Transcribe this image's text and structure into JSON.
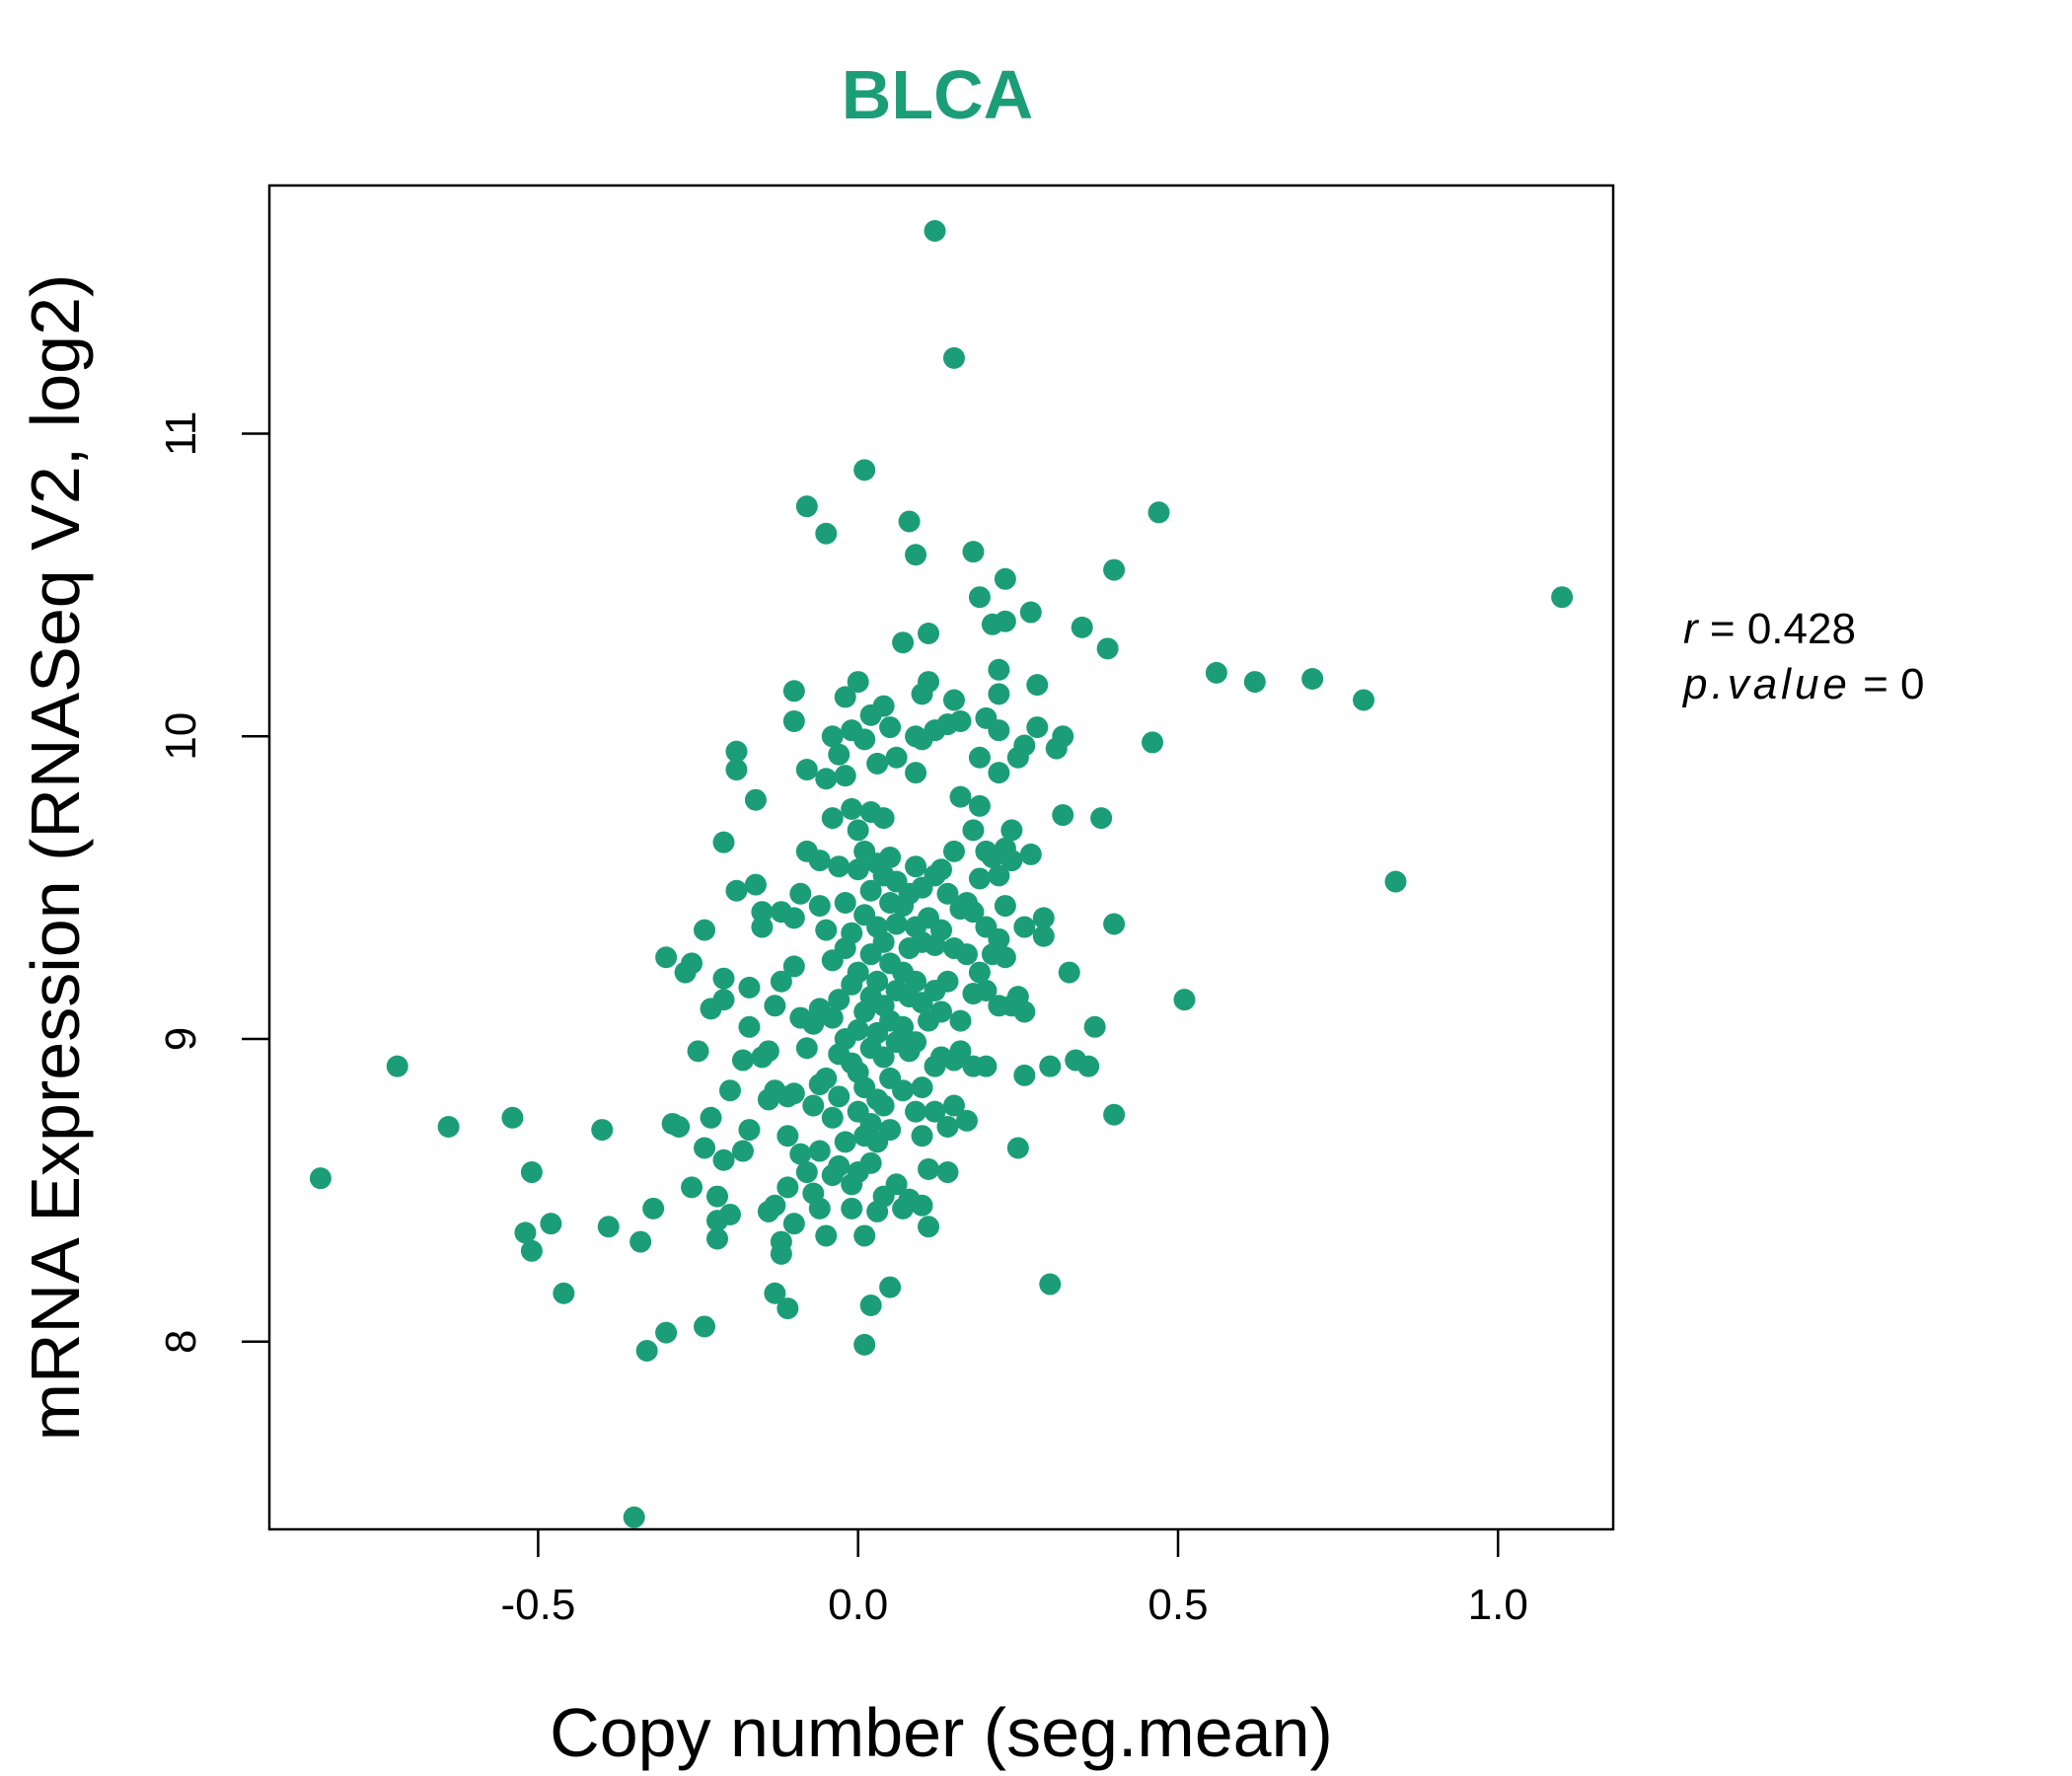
{
  "chart_data": {
    "type": "scatter",
    "title": "BLCA",
    "xlabel": "Copy number (seg.mean)",
    "ylabel": "mRNA Expression (RNASeq V2, log2)",
    "xlim": [
      -0.92,
      1.18
    ],
    "ylim": [
      7.38,
      11.82
    ],
    "x_ticks": [
      {
        "v": -0.5,
        "label": "-0.5"
      },
      {
        "v": 0.0,
        "label": "0.0"
      },
      {
        "v": 0.5,
        "label": "0.5"
      },
      {
        "v": 1.0,
        "label": "1.0"
      }
    ],
    "y_ticks": [
      {
        "v": 8,
        "label": "8"
      },
      {
        "v": 9,
        "label": "9"
      },
      {
        "v": 10,
        "label": "10"
      },
      {
        "v": 11,
        "label": "11"
      }
    ],
    "grid": false,
    "legend": "none",
    "annotation": {
      "r_symbol": "r",
      "r_value": "0.428",
      "p_symbol": "p.value",
      "p_value": "0"
    },
    "colors": {
      "point": "#1B9E77",
      "title": "#1B9E77",
      "axis": "#000000"
    },
    "points": [
      [
        -0.84,
        8.54
      ],
      [
        -0.72,
        8.91
      ],
      [
        -0.64,
        8.71
      ],
      [
        -0.54,
        8.74
      ],
      [
        -0.52,
        8.36
      ],
      [
        -0.51,
        8.56
      ],
      [
        -0.51,
        8.3
      ],
      [
        -0.48,
        8.39
      ],
      [
        -0.46,
        8.16
      ],
      [
        -0.4,
        8.7
      ],
      [
        -0.39,
        8.38
      ],
      [
        -0.35,
        7.42
      ],
      [
        -0.34,
        8.33
      ],
      [
        -0.33,
        7.97
      ],
      [
        -0.32,
        8.44
      ],
      [
        -0.3,
        8.03
      ],
      [
        -0.3,
        9.27
      ],
      [
        -0.29,
        8.72
      ],
      [
        -0.28,
        8.71
      ],
      [
        -0.27,
        9.22
      ],
      [
        -0.26,
        9.25
      ],
      [
        -0.26,
        8.51
      ],
      [
        -0.25,
        8.96
      ],
      [
        -0.24,
        8.05
      ],
      [
        -0.24,
        9.36
      ],
      [
        -0.24,
        8.64
      ],
      [
        -0.23,
        8.74
      ],
      [
        -0.23,
        9.1
      ],
      [
        -0.22,
        8.4
      ],
      [
        -0.22,
        8.34
      ],
      [
        -0.22,
        8.48
      ],
      [
        -0.21,
        9.65
      ],
      [
        -0.21,
        9.2
      ],
      [
        -0.21,
        9.13
      ],
      [
        -0.21,
        8.6
      ],
      [
        -0.2,
        8.42
      ],
      [
        -0.2,
        8.83
      ],
      [
        -0.19,
        9.49
      ],
      [
        -0.19,
        9.95
      ],
      [
        -0.19,
        9.89
      ],
      [
        -0.18,
        8.93
      ],
      [
        -0.18,
        8.63
      ],
      [
        -0.17,
        9.17
      ],
      [
        -0.17,
        9.04
      ],
      [
        -0.17,
        8.7
      ],
      [
        -0.16,
        9.79
      ],
      [
        -0.16,
        9.51
      ],
      [
        -0.15,
        9.37
      ],
      [
        -0.15,
        8.94
      ],
      [
        -0.15,
        9.42
      ],
      [
        -0.14,
        8.8
      ],
      [
        -0.14,
        8.96
      ],
      [
        -0.14,
        8.43
      ],
      [
        -0.13,
        8.45
      ],
      [
        -0.13,
        9.11
      ],
      [
        -0.13,
        8.83
      ],
      [
        -0.13,
        8.16
      ],
      [
        -0.12,
        8.33
      ],
      [
        -0.12,
        8.29
      ],
      [
        -0.12,
        9.42
      ],
      [
        -0.12,
        9.19
      ],
      [
        -0.11,
        8.51
      ],
      [
        -0.11,
        8.11
      ],
      [
        -0.11,
        8.68
      ],
      [
        -0.11,
        8.81
      ],
      [
        -0.1,
        10.15
      ],
      [
        -0.1,
        10.05
      ],
      [
        -0.1,
        9.4
      ],
      [
        -0.1,
        9.24
      ],
      [
        -0.1,
        8.82
      ],
      [
        -0.1,
        8.39
      ],
      [
        -0.09,
        9.48
      ],
      [
        -0.09,
        9.07
      ],
      [
        -0.09,
        8.62
      ],
      [
        -0.08,
        10.76
      ],
      [
        -0.08,
        9.89
      ],
      [
        -0.08,
        9.62
      ],
      [
        -0.08,
        8.97
      ],
      [
        -0.08,
        8.56
      ],
      [
        -0.07,
        9.05
      ],
      [
        -0.07,
        8.49
      ],
      [
        -0.07,
        8.78
      ],
      [
        -0.06,
        9.59
      ],
      [
        -0.06,
        9.44
      ],
      [
        -0.06,
        9.1
      ],
      [
        -0.06,
        8.85
      ],
      [
        -0.06,
        8.63
      ],
      [
        -0.06,
        8.44
      ],
      [
        -0.05,
        10.67
      ],
      [
        -0.05,
        9.86
      ],
      [
        -0.05,
        9.36
      ],
      [
        -0.05,
        8.87
      ],
      [
        -0.05,
        8.35
      ],
      [
        -0.04,
        10.0
      ],
      [
        -0.04,
        9.73
      ],
      [
        -0.04,
        9.26
      ],
      [
        -0.04,
        9.07
      ],
      [
        -0.04,
        8.74
      ],
      [
        -0.04,
        8.55
      ],
      [
        -0.03,
        9.94
      ],
      [
        -0.03,
        9.57
      ],
      [
        -0.03,
        9.13
      ],
      [
        -0.03,
        8.95
      ],
      [
        -0.03,
        8.81
      ],
      [
        -0.03,
        8.58
      ],
      [
        -0.02,
        10.13
      ],
      [
        -0.02,
        9.87
      ],
      [
        -0.02,
        9.45
      ],
      [
        -0.02,
        9.3
      ],
      [
        -0.02,
        9.0
      ],
      [
        -0.02,
        8.66
      ],
      [
        -0.01,
        10.02
      ],
      [
        -0.01,
        9.76
      ],
      [
        -0.01,
        9.35
      ],
      [
        -0.01,
        9.18
      ],
      [
        -0.01,
        8.92
      ],
      [
        -0.01,
        8.52
      ],
      [
        -0.01,
        8.44
      ],
      [
        0.0,
        10.18
      ],
      [
        0.0,
        9.69
      ],
      [
        0.0,
        9.56
      ],
      [
        0.0,
        9.22
      ],
      [
        0.0,
        9.03
      ],
      [
        0.0,
        8.89
      ],
      [
        0.0,
        8.76
      ],
      [
        0.0,
        8.56
      ],
      [
        0.01,
        10.88
      ],
      [
        0.01,
        9.99
      ],
      [
        0.01,
        9.62
      ],
      [
        0.01,
        9.41
      ],
      [
        0.01,
        9.09
      ],
      [
        0.01,
        8.84
      ],
      [
        0.01,
        8.68
      ],
      [
        0.01,
        8.35
      ],
      [
        0.01,
        7.99
      ],
      [
        0.02,
        10.07
      ],
      [
        0.02,
        9.75
      ],
      [
        0.02,
        9.49
      ],
      [
        0.02,
        9.28
      ],
      [
        0.02,
        9.14
      ],
      [
        0.02,
        8.97
      ],
      [
        0.02,
        8.72
      ],
      [
        0.02,
        8.59
      ],
      [
        0.02,
        8.12
      ],
      [
        0.03,
        9.91
      ],
      [
        0.03,
        9.58
      ],
      [
        0.03,
        9.37
      ],
      [
        0.03,
        9.19
      ],
      [
        0.03,
        9.02
      ],
      [
        0.03,
        8.8
      ],
      [
        0.03,
        8.66
      ],
      [
        0.03,
        8.43
      ],
      [
        0.04,
        10.1
      ],
      [
        0.04,
        9.73
      ],
      [
        0.04,
        9.54
      ],
      [
        0.04,
        9.32
      ],
      [
        0.04,
        9.11
      ],
      [
        0.04,
        8.94
      ],
      [
        0.04,
        8.78
      ],
      [
        0.04,
        8.48
      ],
      [
        0.05,
        10.03
      ],
      [
        0.05,
        9.6
      ],
      [
        0.05,
        9.45
      ],
      [
        0.05,
        9.25
      ],
      [
        0.05,
        9.06
      ],
      [
        0.05,
        8.87
      ],
      [
        0.05,
        8.7
      ],
      [
        0.05,
        8.18
      ],
      [
        0.06,
        9.93
      ],
      [
        0.06,
        9.52
      ],
      [
        0.06,
        9.38
      ],
      [
        0.06,
        9.16
      ],
      [
        0.06,
        8.99
      ],
      [
        0.06,
        8.52
      ],
      [
        0.07,
        10.31
      ],
      [
        0.07,
        9.44
      ],
      [
        0.07,
        9.22
      ],
      [
        0.07,
        9.04
      ],
      [
        0.07,
        8.83
      ],
      [
        0.07,
        8.44
      ],
      [
        0.08,
        10.71
      ],
      [
        0.08,
        9.48
      ],
      [
        0.08,
        9.3
      ],
      [
        0.08,
        9.14
      ],
      [
        0.08,
        8.96
      ],
      [
        0.08,
        8.47
      ],
      [
        0.09,
        10.6
      ],
      [
        0.09,
        10.0
      ],
      [
        0.09,
        9.88
      ],
      [
        0.09,
        9.57
      ],
      [
        0.09,
        9.37
      ],
      [
        0.09,
        9.19
      ],
      [
        0.09,
        8.99
      ],
      [
        0.09,
        8.76
      ],
      [
        0.1,
        10.14
      ],
      [
        0.1,
        9.99
      ],
      [
        0.1,
        9.5
      ],
      [
        0.1,
        9.32
      ],
      [
        0.1,
        9.12
      ],
      [
        0.1,
        8.84
      ],
      [
        0.1,
        8.68
      ],
      [
        0.1,
        8.45
      ],
      [
        0.11,
        10.34
      ],
      [
        0.11,
        10.18
      ],
      [
        0.11,
        9.4
      ],
      [
        0.11,
        9.06
      ],
      [
        0.11,
        8.57
      ],
      [
        0.11,
        8.38
      ],
      [
        0.12,
        11.67
      ],
      [
        0.12,
        10.02
      ],
      [
        0.12,
        9.54
      ],
      [
        0.12,
        9.31
      ],
      [
        0.12,
        9.16
      ],
      [
        0.12,
        8.91
      ],
      [
        0.12,
        8.76
      ],
      [
        0.13,
        9.56
      ],
      [
        0.13,
        9.36
      ],
      [
        0.13,
        9.09
      ],
      [
        0.13,
        8.94
      ],
      [
        0.14,
        10.04
      ],
      [
        0.14,
        9.48
      ],
      [
        0.14,
        9.19
      ],
      [
        0.14,
        8.71
      ],
      [
        0.14,
        8.56
      ],
      [
        0.15,
        11.25
      ],
      [
        0.15,
        10.12
      ],
      [
        0.15,
        9.62
      ],
      [
        0.15,
        9.3
      ],
      [
        0.15,
        8.93
      ],
      [
        0.15,
        8.78
      ],
      [
        0.16,
        10.05
      ],
      [
        0.16,
        9.8
      ],
      [
        0.16,
        9.43
      ],
      [
        0.16,
        9.06
      ],
      [
        0.16,
        8.96
      ],
      [
        0.17,
        9.45
      ],
      [
        0.17,
        9.28
      ],
      [
        0.17,
        8.73
      ],
      [
        0.18,
        10.61
      ],
      [
        0.18,
        9.69
      ],
      [
        0.18,
        9.42
      ],
      [
        0.18,
        9.15
      ],
      [
        0.18,
        8.91
      ],
      [
        0.19,
        10.46
      ],
      [
        0.19,
        9.93
      ],
      [
        0.19,
        9.77
      ],
      [
        0.19,
        9.53
      ],
      [
        0.19,
        9.22
      ],
      [
        0.2,
        10.06
      ],
      [
        0.2,
        9.62
      ],
      [
        0.2,
        9.37
      ],
      [
        0.2,
        9.16
      ],
      [
        0.2,
        8.91
      ],
      [
        0.21,
        10.37
      ],
      [
        0.21,
        9.6
      ],
      [
        0.21,
        9.28
      ],
      [
        0.22,
        10.22
      ],
      [
        0.22,
        10.14
      ],
      [
        0.22,
        10.02
      ],
      [
        0.22,
        9.88
      ],
      [
        0.22,
        9.54
      ],
      [
        0.22,
        9.33
      ],
      [
        0.22,
        9.11
      ],
      [
        0.23,
        10.52
      ],
      [
        0.23,
        10.38
      ],
      [
        0.23,
        9.63
      ],
      [
        0.23,
        9.44
      ],
      [
        0.23,
        9.27
      ],
      [
        0.24,
        9.69
      ],
      [
        0.24,
        9.59
      ],
      [
        0.24,
        9.11
      ],
      [
        0.25,
        9.93
      ],
      [
        0.25,
        9.14
      ],
      [
        0.25,
        8.64
      ],
      [
        0.26,
        9.97
      ],
      [
        0.26,
        9.37
      ],
      [
        0.26,
        9.09
      ],
      [
        0.26,
        8.88
      ],
      [
        0.27,
        10.41
      ],
      [
        0.27,
        9.61
      ],
      [
        0.28,
        10.17
      ],
      [
        0.28,
        10.03
      ],
      [
        0.29,
        9.4
      ],
      [
        0.29,
        9.34
      ],
      [
        0.3,
        8.91
      ],
      [
        0.3,
        8.19
      ],
      [
        0.31,
        9.96
      ],
      [
        0.32,
        10.0
      ],
      [
        0.32,
        9.74
      ],
      [
        0.33,
        9.22
      ],
      [
        0.34,
        8.93
      ],
      [
        0.35,
        10.36
      ],
      [
        0.36,
        8.91
      ],
      [
        0.37,
        9.04
      ],
      [
        0.38,
        9.73
      ],
      [
        0.39,
        10.29
      ],
      [
        0.4,
        10.55
      ],
      [
        0.4,
        9.38
      ],
      [
        0.4,
        8.75
      ],
      [
        0.46,
        9.98
      ],
      [
        0.47,
        10.74
      ],
      [
        0.51,
        9.13
      ],
      [
        0.56,
        10.21
      ],
      [
        0.62,
        10.18
      ],
      [
        0.71,
        10.19
      ],
      [
        0.79,
        10.12
      ],
      [
        0.84,
        9.52
      ],
      [
        1.1,
        10.46
      ]
    ]
  }
}
